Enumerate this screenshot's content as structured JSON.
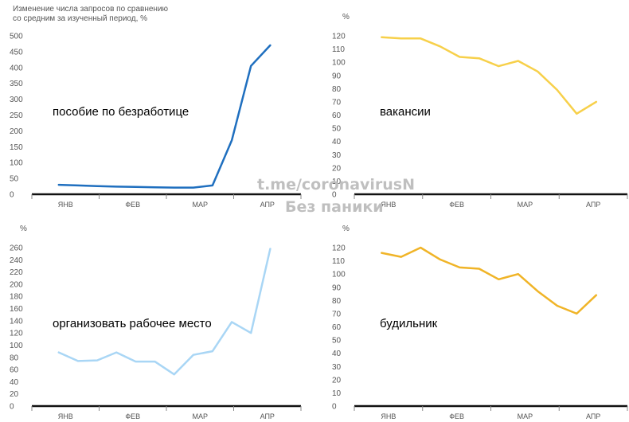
{
  "header": {
    "caption_line1": "Изменение числа запросов по сравнению",
    "caption_line2": "со средним за изученный период, %"
  },
  "watermark": {
    "line1": "t.me/coronavirusN",
    "line2": "Без паники"
  },
  "chart_data": [
    {
      "type": "line",
      "label": "пособие по безработице",
      "unit": "",
      "color": "#1f6fbf",
      "months": [
        "ЯНВ",
        "ФЕВ",
        "МАР",
        "АПР"
      ],
      "ylim": [
        0,
        500
      ],
      "yticks": [
        0,
        50,
        100,
        150,
        200,
        250,
        300,
        350,
        400,
        450,
        500
      ],
      "x": [
        "Jan 5",
        "Jan 12",
        "Jan 19",
        "Jan 26",
        "Feb 2",
        "Feb 9",
        "Feb 16",
        "Feb 23",
        "Mar 1",
        "Mar 8",
        "Mar 15",
        "Mar 22",
        "Mar 29"
      ],
      "values": [
        30,
        28,
        26,
        24,
        23,
        22,
        21,
        21,
        28,
        170,
        405,
        470,
        null
      ]
    },
    {
      "type": "line",
      "label": "вакансии",
      "unit": "%",
      "color": "#f7d04a",
      "months": [
        "ЯНВ",
        "ФЕВ",
        "МАР",
        "АПР"
      ],
      "ylim": [
        0,
        120
      ],
      "yticks": [
        0,
        10,
        20,
        30,
        40,
        50,
        60,
        70,
        80,
        90,
        100,
        110,
        120
      ],
      "x": [
        "Jan 5",
        "Jan 12",
        "Jan 19",
        "Jan 26",
        "Feb 2",
        "Feb 9",
        "Feb 16",
        "Feb 23",
        "Mar 1",
        "Mar 8",
        "Mar 15",
        "Mar 22",
        "Mar 29"
      ],
      "values": [
        119,
        118,
        118,
        112,
        104,
        103,
        97,
        101,
        93,
        79,
        61,
        70,
        null
      ]
    },
    {
      "type": "line",
      "label": "организовать рабочее место",
      "unit": "%",
      "color": "#a9d6f5",
      "months": [
        "ЯНВ",
        "ФЕВ",
        "МАР",
        "АПР"
      ],
      "ylim": [
        0,
        260
      ],
      "yticks": [
        0,
        20,
        40,
        60,
        80,
        100,
        120,
        140,
        160,
        180,
        200,
        220,
        240,
        260
      ],
      "x": [
        "Jan 5",
        "Jan 12",
        "Jan 19",
        "Jan 26",
        "Feb 2",
        "Feb 9",
        "Feb 16",
        "Feb 23",
        "Mar 1",
        "Mar 8",
        "Mar 15",
        "Mar 22",
        "Mar 29"
      ],
      "values": [
        88,
        74,
        75,
        88,
        73,
        73,
        52,
        84,
        90,
        138,
        120,
        258,
        null
      ]
    },
    {
      "type": "line",
      "label": "будильник",
      "unit": "%",
      "color": "#f0b427",
      "months": [
        "ЯНВ",
        "ФЕВ",
        "МАР",
        "АПР"
      ],
      "ylim": [
        0,
        120
      ],
      "yticks": [
        0,
        10,
        20,
        30,
        40,
        50,
        60,
        70,
        80,
        90,
        100,
        110,
        120
      ],
      "x": [
        "Jan 5",
        "Jan 12",
        "Jan 19",
        "Jan 26",
        "Feb 2",
        "Feb 9",
        "Feb 16",
        "Feb 23",
        "Mar 1",
        "Mar 8",
        "Mar 15",
        "Mar 22",
        "Mar 29"
      ],
      "values": [
        116,
        113,
        120,
        111,
        105,
        104,
        96,
        100,
        87,
        76,
        70,
        84,
        null
      ]
    }
  ]
}
